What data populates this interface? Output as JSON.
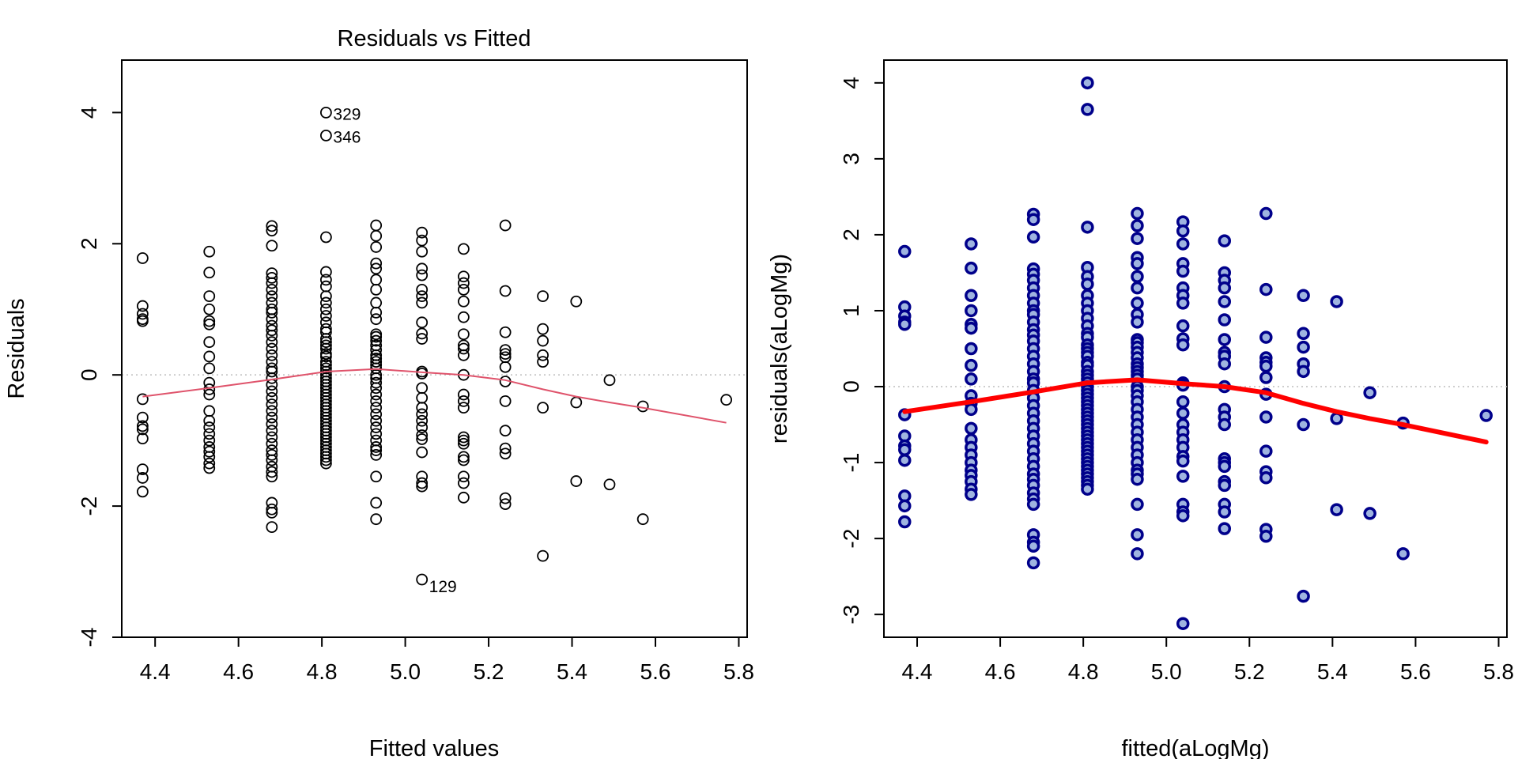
{
  "chart_data": [
    {
      "type": "scatter",
      "title": "Residuals vs Fitted",
      "xlabel": "Fitted values",
      "ylabel": "Residuals",
      "xlim": [
        4.32,
        5.82
      ],
      "ylim": [
        -4,
        4.8
      ],
      "xticks": [
        "4.4",
        "4.6",
        "4.8",
        "5.0",
        "5.2",
        "5.4",
        "5.6",
        "5.8"
      ],
      "yticks": [
        "-4",
        "-2",
        "0",
        "2",
        "4"
      ],
      "point_style": "open-circle",
      "point_color": "#000000",
      "smooth_color": "#DF536B",
      "reference_line": {
        "y": 0,
        "style": "dotted",
        "color": "#BEBEBE"
      },
      "labeled_points": [
        {
          "label": "329",
          "x": 4.81,
          "y": 4.0
        },
        {
          "label": "346",
          "x": 4.81,
          "y": 3.65
        },
        {
          "label": "129",
          "x": 5.04,
          "y": -3.12
        }
      ]
    },
    {
      "type": "scatter",
      "title": "",
      "xlabel": "fitted(aLogMg)",
      "ylabel": "residuals(aLogMg)",
      "xlim": [
        4.32,
        5.82
      ],
      "ylim": [
        -3.3,
        4.3
      ],
      "xticks": [
        "4.4",
        "4.6",
        "4.8",
        "5.0",
        "5.2",
        "5.4",
        "5.6",
        "5.8"
      ],
      "yticks": [
        "-3",
        "-2",
        "-1",
        "0",
        "1",
        "2",
        "3",
        "4"
      ],
      "point_style": "filled-circle",
      "point_fill": "#9FB4E0",
      "point_stroke": "#00008B",
      "smooth_color": "#FF0000",
      "reference_line": {
        "y": 0,
        "style": "dotted",
        "color": "#BEBEBE"
      }
    }
  ],
  "shared": {
    "smooth": {
      "x": [
        4.37,
        4.53,
        4.68,
        4.81,
        4.93,
        5.04,
        5.14,
        5.24,
        5.33,
        5.41,
        5.49,
        5.57,
        5.77
      ],
      "y": [
        -0.33,
        -0.2,
        -0.07,
        0.05,
        0.09,
        0.04,
        0.0,
        -0.08,
        -0.22,
        -0.33,
        -0.42,
        -0.5,
        -0.73
      ]
    },
    "points": [
      {
        "x": 4.37,
        "y": [
          1.78,
          1.05,
          0.93,
          0.85,
          0.82,
          -0.37,
          -0.65,
          -0.78,
          -0.83,
          -0.97,
          -1.44,
          -1.57,
          -1.78
        ]
      },
      {
        "x": 4.53,
        "y": [
          1.88,
          1.56,
          1.2,
          1.0,
          0.82,
          0.77,
          0.5,
          0.28,
          0.1,
          -0.12,
          -0.22,
          -0.3,
          -0.55,
          -0.7,
          -0.8,
          -0.9,
          -1.0,
          -1.1,
          -1.17,
          -1.25,
          -1.35,
          -1.42
        ]
      },
      {
        "x": 4.68,
        "y": [
          2.27,
          2.2,
          1.97,
          1.55,
          1.48,
          1.4,
          1.3,
          1.2,
          1.1,
          1.0,
          0.95,
          0.85,
          0.75,
          0.68,
          0.6,
          0.5,
          0.4,
          0.3,
          0.2,
          0.1,
          0.05,
          -0.05,
          -0.15,
          -0.25,
          -0.35,
          -0.45,
          -0.55,
          -0.65,
          -0.75,
          -0.85,
          -0.95,
          -1.05,
          -1.15,
          -1.22,
          -1.3,
          -1.4,
          -1.48,
          -1.55,
          -1.95,
          -2.05,
          -2.1,
          -2.32
        ]
      },
      {
        "x": 4.81,
        "y": [
          4.0,
          3.65,
          2.1,
          1.57,
          1.45,
          1.35,
          1.2,
          1.1,
          1.0,
          0.9,
          0.8,
          0.7,
          0.65,
          0.55,
          0.5,
          0.45,
          0.4,
          0.32,
          0.28,
          0.2,
          0.15,
          0.1,
          0.05,
          0.0,
          -0.05,
          -0.1,
          -0.15,
          -0.2,
          -0.25,
          -0.3,
          -0.35,
          -0.4,
          -0.45,
          -0.5,
          -0.55,
          -0.6,
          -0.65,
          -0.7,
          -0.75,
          -0.8,
          -0.85,
          -0.9,
          -0.95,
          -1.0,
          -1.05,
          -1.1,
          -1.15,
          -1.2,
          -1.25,
          -1.3,
          -1.35
        ]
      },
      {
        "x": 4.93,
        "y": [
          2.28,
          2.12,
          1.95,
          1.7,
          1.62,
          1.45,
          1.3,
          1.1,
          0.95,
          0.85,
          0.62,
          0.58,
          0.52,
          0.45,
          0.38,
          0.3,
          0.25,
          0.2,
          0.15,
          0.1,
          0.0,
          -0.05,
          -0.12,
          -0.2,
          -0.3,
          -0.4,
          -0.5,
          -0.6,
          -0.7,
          -0.8,
          -0.9,
          -1.0,
          -1.1,
          -1.15,
          -1.22,
          -1.55,
          -1.95,
          -2.2
        ]
      },
      {
        "x": 5.04,
        "y": [
          2.17,
          2.05,
          1.88,
          1.62,
          1.52,
          1.3,
          1.2,
          1.1,
          0.8,
          0.63,
          0.55,
          0.05,
          0.02,
          -0.2,
          -0.35,
          -0.5,
          -0.6,
          -0.7,
          -0.8,
          -0.92,
          -0.98,
          -1.18,
          -1.55,
          -1.65,
          -1.7,
          -3.12
        ]
      },
      {
        "x": 5.14,
        "y": [
          1.92,
          1.5,
          1.4,
          1.3,
          1.12,
          0.88,
          0.62,
          0.45,
          0.4,
          0.3,
          0.0,
          -0.3,
          -0.4,
          -0.5,
          -0.95,
          -1.0,
          -1.05,
          -1.25,
          -1.3,
          -1.55,
          -1.65,
          -1.87
        ]
      },
      {
        "x": 5.24,
        "y": [
          2.28,
          1.28,
          0.65,
          0.38,
          0.32,
          0.27,
          0.12,
          -0.1,
          -0.4,
          -0.85,
          -1.12,
          -1.2,
          -1.88,
          -1.97
        ]
      },
      {
        "x": 5.33,
        "y": [
          1.2,
          0.7,
          0.52,
          0.3,
          0.2,
          -0.5,
          -2.76
        ]
      },
      {
        "x": 5.41,
        "y": [
          1.12,
          -0.42,
          -1.62
        ]
      },
      {
        "x": 5.49,
        "y": [
          -0.08,
          -1.67
        ]
      },
      {
        "x": 5.57,
        "y": [
          -0.48,
          -2.2
        ]
      },
      {
        "x": 5.77,
        "y": [
          -0.38
        ]
      }
    ]
  }
}
